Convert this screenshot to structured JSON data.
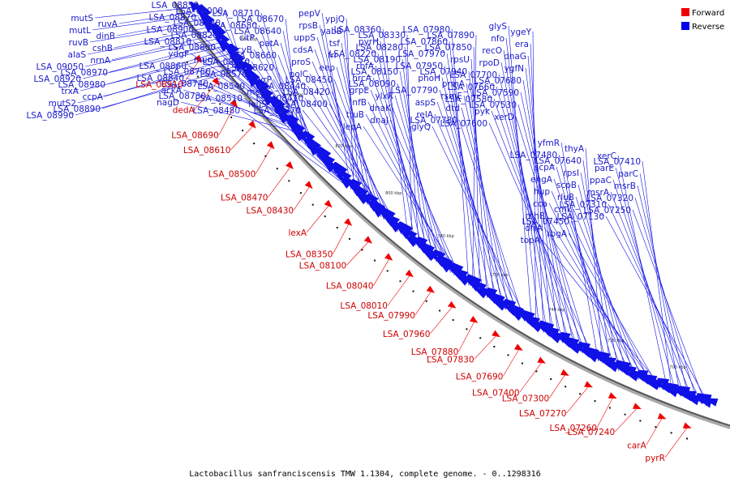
{
  "caption": "Lactobacillus sanfranciscensis TMW 1.1304, complete genome. - 0..1298316",
  "legend": [
    {
      "label": "Forward",
      "color": "#ee0000"
    },
    {
      "label": "Reverse",
      "color": "#0000ee"
    }
  ],
  "colors": {
    "forward": "#ee0000",
    "reverse": "#1010e8",
    "forward_label": "#cc0000",
    "reverse_label": "#1a1acc"
  },
  "scale_ticks": [
    "860 kbp",
    "840 kbp",
    "820 kbp",
    "800 kbp",
    "780 kbp",
    "760 kbp",
    "740 kbp",
    "720 kbp",
    "700 kbp"
  ],
  "forward_labels": [
    "LSA_08910",
    "dedA",
    "LSA_08690",
    "LSA_08610",
    "LSA_08500",
    "LSA_08470",
    "LSA_08430",
    "lexA",
    "LSA_08350",
    "LSA_08100",
    "LSA_08040",
    "LSA_08010",
    "LSA_07990",
    "LSA_07960",
    "LSA_07880",
    "LSA_07830",
    "LSA_07690",
    "LSA_07400",
    "LSA_07300",
    "LSA_07270",
    "LSA_07260",
    "LSA_07240",
    "carA",
    "pyrR"
  ],
  "reverse_labels": [
    "mutS",
    "ruvA",
    "mutL",
    "dinB",
    "ruvB",
    "cshB",
    "alaS",
    "nrnA",
    "LSA_09050",
    "LSA_08970",
    "LSA_08920",
    "LSA_08980",
    "trxA",
    "ccpA",
    "mutS2",
    "LSA_08890",
    "LSA_08990",
    "LSA_08850",
    "LSA_09000",
    "LSA_08870",
    "LSA_08830",
    "LSA_08900",
    "LSA_08820",
    "LSA_08810",
    "LSA_08800",
    "ydgF",
    "murI",
    "LSA_08860",
    "LSA_08750",
    "LSA_08840",
    "LSA_08740",
    "ackA",
    "LSA_08730",
    "nagD",
    "LSA_08710",
    "LSA_08670",
    "LSA_08680",
    "LSA_08640",
    "citP",
    "patA",
    "tcyB",
    "LSA_08660",
    "LSA_08650",
    "LSA_08620",
    "LSA_08570",
    "pyrP",
    "LSA_08540",
    "metK",
    "LSA_08510",
    "leuS",
    "LSA_08480",
    "pepV",
    "ypjQ",
    "rpsB",
    "yabB",
    "uppS",
    "tsf",
    "cdsA",
    "frr",
    "proS",
    "eep",
    "polC",
    "LSA_08450",
    "LSA_08440",
    "LSA_08420",
    "LSA_08410",
    "LSA_08400",
    "LSA_08370",
    "LSA_08360",
    "LSA_08330",
    "pyrH",
    "LSA_08280",
    "LSA_08220",
    "LSA_08190",
    "rbfA",
    "LSA_08150",
    "hrcA",
    "LSA_08090",
    "grpE",
    "ylxR",
    "infB",
    "dnaK",
    "truB",
    "dnaJ",
    "lepA",
    "LSA_07980",
    "LSA_07890",
    "LSA_07860",
    "LSA_07850",
    "LSA_07970",
    "rpsU",
    "LSA_07950",
    "LSA_07940",
    "phoH",
    "prmA",
    "LSA_07790",
    "rsmE",
    "aspS",
    "dtd",
    "relA",
    "LSA_07780",
    "glyQ",
    "glyS",
    "ygeY",
    "nfo",
    "era",
    "recO",
    "dnaG",
    "rpoD",
    "ygfN",
    "LSA_07700",
    "LSA_07680",
    "LSA_07660",
    "LSA_07590",
    "LSA_07580",
    "LSA_07530",
    "pyk",
    "xerD",
    "LSA_07600",
    "yfmR",
    "thyA",
    "LSA_07480",
    "LSA_07640",
    "scpA",
    "rpsI",
    "engA",
    "scpB",
    "hup",
    "rluB",
    "cca",
    "cmk",
    "rnhB",
    "LSA_07450",
    "dfrA",
    "rbgA",
    "topA",
    "xerC",
    "LSA_07410",
    "parE",
    "parC",
    "ppaC",
    "msrB",
    "msrA",
    "LSA_07320",
    "LSA_07310",
    "LSA_07250",
    "LSA_07130"
  ]
}
